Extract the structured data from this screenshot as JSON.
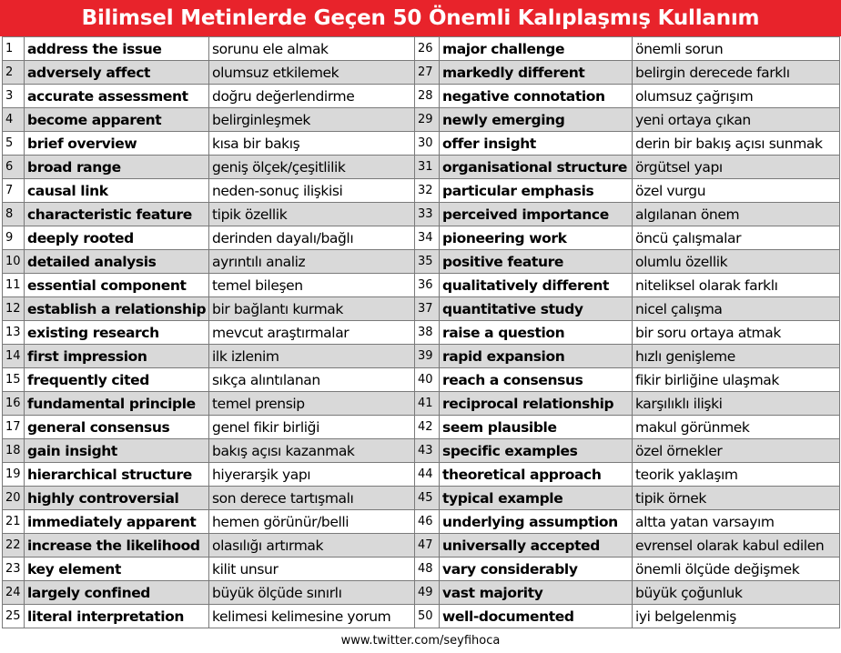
{
  "title": "Bilimsel Metinlerde Geçen 50 Önemli Kalıplaşmış Kullanım",
  "colors": {
    "title_bg": "#e8232b",
    "title_text": "#ffffff",
    "stripe": "#d9d9d9"
  },
  "rows": [
    {
      "left": {
        "n": "1",
        "en": "address the issue",
        "tr": "sorunu ele almak"
      },
      "right": {
        "n": "26",
        "en": "major challenge",
        "tr": "önemli sorun"
      }
    },
    {
      "left": {
        "n": "2",
        "en": "adversely affect",
        "tr": "olumsuz etkilemek"
      },
      "right": {
        "n": "27",
        "en": "markedly different",
        "tr": "belirgin derecede farklı"
      }
    },
    {
      "left": {
        "n": "3",
        "en": "accurate assessment",
        "tr": "doğru değerlendirme"
      },
      "right": {
        "n": "28",
        "en": "negative connotation",
        "tr": "olumsuz çağrışım"
      }
    },
    {
      "left": {
        "n": "4",
        "en": "become apparent",
        "tr": "belirginleşmek"
      },
      "right": {
        "n": "29",
        "en": "newly emerging",
        "tr": "yeni ortaya çıkan"
      }
    },
    {
      "left": {
        "n": "5",
        "en": "brief overview",
        "tr": "kısa bir bakış"
      },
      "right": {
        "n": "30",
        "en": "offer insight",
        "tr": "derin bir bakış açısı sunmak"
      }
    },
    {
      "left": {
        "n": "6",
        "en": "broad range",
        "tr": "geniş ölçek/çeşitlilik"
      },
      "right": {
        "n": "31",
        "en": "organisational structure",
        "tr": "örgütsel yapı"
      }
    },
    {
      "left": {
        "n": "7",
        "en": "causal link",
        "tr": "neden-sonuç ilişkisi"
      },
      "right": {
        "n": "32",
        "en": "particular emphasis",
        "tr": "özel vurgu"
      }
    },
    {
      "left": {
        "n": "8",
        "en": "characteristic feature",
        "tr": "tipik özellik"
      },
      "right": {
        "n": "33",
        "en": "perceived importance",
        "tr": "algılanan önem"
      }
    },
    {
      "left": {
        "n": "9",
        "en": "deeply rooted",
        "tr": "derinden dayalı/bağlı"
      },
      "right": {
        "n": "34",
        "en": "pioneering work",
        "tr": "öncü çalışmalar"
      }
    },
    {
      "left": {
        "n": "10",
        "en": "detailed analysis",
        "tr": "ayrıntılı analiz"
      },
      "right": {
        "n": "35",
        "en": "positive feature",
        "tr": "olumlu özellik"
      }
    },
    {
      "left": {
        "n": "11",
        "en": "essential component",
        "tr": "temel bileşen"
      },
      "right": {
        "n": "36",
        "en": "qualitatively different",
        "tr": "niteliksel olarak farklı"
      }
    },
    {
      "left": {
        "n": "12",
        "en": "establish a relationship",
        "tr": "bir bağlantı kurmak"
      },
      "right": {
        "n": "37",
        "en": "quantitative study",
        "tr": "nicel çalışma"
      }
    },
    {
      "left": {
        "n": "13",
        "en": "existing research",
        "tr": "mevcut araştırmalar"
      },
      "right": {
        "n": "38",
        "en": "raise a question",
        "tr": "bir soru ortaya atmak"
      }
    },
    {
      "left": {
        "n": "14",
        "en": "first impression",
        "tr": "ilk izlenim"
      },
      "right": {
        "n": "39",
        "en": "rapid expansion",
        "tr": "hızlı genişleme"
      }
    },
    {
      "left": {
        "n": "15",
        "en": "frequently cited",
        "tr": "sıkça alıntılanan"
      },
      "right": {
        "n": "40",
        "en": "reach a consensus",
        "tr": "fikir birliğine ulaşmak"
      }
    },
    {
      "left": {
        "n": "16",
        "en": "fundamental principle",
        "tr": "temel prensip"
      },
      "right": {
        "n": "41",
        "en": "reciprocal relationship",
        "tr": "karşılıklı ilişki"
      }
    },
    {
      "left": {
        "n": "17",
        "en": "general consensus",
        "tr": "genel fikir birliği"
      },
      "right": {
        "n": "42",
        "en": "seem plausible",
        "tr": "makul görünmek"
      }
    },
    {
      "left": {
        "n": "18",
        "en": "gain insight",
        "tr": "bakış açısı kazanmak"
      },
      "right": {
        "n": "43",
        "en": "specific examples",
        "tr": "özel örnekler"
      }
    },
    {
      "left": {
        "n": "19",
        "en": "hierarchical structure",
        "tr": "hiyerarşik yapı"
      },
      "right": {
        "n": "44",
        "en": "theoretical approach",
        "tr": "teorik yaklaşım"
      }
    },
    {
      "left": {
        "n": "20",
        "en": "highly controversial",
        "tr": "son derece tartışmalı"
      },
      "right": {
        "n": "45",
        "en": "typical example",
        "tr": "tipik örnek"
      }
    },
    {
      "left": {
        "n": "21",
        "en": "immediately apparent",
        "tr": "hemen görünür/belli"
      },
      "right": {
        "n": "46",
        "en": "underlying assumption",
        "tr": "altta yatan varsayım"
      }
    },
    {
      "left": {
        "n": "22",
        "en": "increase the likelihood",
        "tr": "olasılığı artırmak"
      },
      "right": {
        "n": "47",
        "en": "universally accepted",
        "tr": "evrensel olarak kabul edilen"
      }
    },
    {
      "left": {
        "n": "23",
        "en": "key element",
        "tr": "kilit unsur"
      },
      "right": {
        "n": "48",
        "en": "vary considerably",
        "tr": "önemli ölçüde değişmek"
      }
    },
    {
      "left": {
        "n": "24",
        "en": "largely confined",
        "tr": "büyük ölçüde sınırlı"
      },
      "right": {
        "n": "49",
        "en": "vast majority",
        "tr": "büyük çoğunluk"
      }
    },
    {
      "left": {
        "n": "25",
        "en": "literal interpretation",
        "tr": "kelimesi kelimesine yorum"
      },
      "right": {
        "n": "50",
        "en": "well-documented",
        "tr": "iyi belgelenmiş"
      }
    }
  ],
  "footer": "www.twitter.com/seyfihoca"
}
